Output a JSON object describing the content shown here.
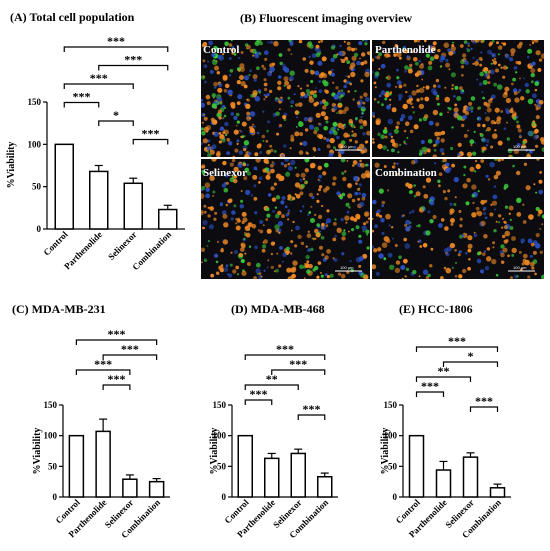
{
  "fluorescent": {
    "title": "(B)  Fluorescent imaging overview",
    "panels": [
      {
        "label": "Control",
        "scale": "100 µm"
      },
      {
        "label": "Parthenolide",
        "scale": "100 µm"
      },
      {
        "label": "Selinexor",
        "scale": "100 µm"
      },
      {
        "label": "Combination",
        "scale": "100 µm"
      }
    ],
    "colors": {
      "orange": "#f08a24",
      "blue": "#2a4fc0",
      "green": "#3ac83a",
      "background": "#0b0b10"
    }
  },
  "chart_data": [
    {
      "id": "A",
      "type": "bar",
      "title": "(A)  Total cell population",
      "ylabel": "%Viability",
      "xlabel": "",
      "ylim": [
        0,
        150
      ],
      "yticks": [
        0,
        50,
        100,
        150
      ],
      "categories": [
        "Control",
        "Parthenolide",
        "Selinexor",
        "Combination"
      ],
      "values": [
        100,
        68,
        54,
        23
      ],
      "errors": [
        0,
        7,
        6,
        5
      ],
      "significance": [
        {
          "from": 0,
          "to": 3,
          "label": "***"
        },
        {
          "from": 1,
          "to": 3,
          "label": "***"
        },
        {
          "from": 0,
          "to": 2,
          "label": "***"
        },
        {
          "from": 0,
          "to": 1,
          "label": "***"
        },
        {
          "from": 1,
          "to": 2,
          "label": "*"
        },
        {
          "from": 2,
          "to": 3,
          "label": "***"
        }
      ]
    },
    {
      "id": "C",
      "type": "bar",
      "title": "(C)  MDA-MB-231",
      "ylabel": "%Viability",
      "xlabel": "",
      "ylim": [
        0,
        150
      ],
      "yticks": [
        0,
        50,
        100,
        150
      ],
      "categories": [
        "Control",
        "Parthenolide",
        "Selinexor",
        "Combination"
      ],
      "values": [
        100,
        107,
        29,
        25
      ],
      "errors": [
        0,
        20,
        7,
        5
      ],
      "significance": [
        {
          "from": 0,
          "to": 3,
          "label": "***"
        },
        {
          "from": 1,
          "to": 3,
          "label": "***"
        },
        {
          "from": 0,
          "to": 2,
          "label": "***"
        },
        {
          "from": 1,
          "to": 2,
          "label": "***"
        }
      ]
    },
    {
      "id": "D",
      "type": "bar",
      "title": "(D)  MDA-MB-468",
      "ylabel": "%Viability",
      "xlabel": "",
      "ylim": [
        0,
        150
      ],
      "yticks": [
        0,
        50,
        100,
        150
      ],
      "categories": [
        "Control",
        "Parthenolide",
        "Selinexor",
        "Combination"
      ],
      "values": [
        100,
        63,
        71,
        33
      ],
      "errors": [
        0,
        8,
        7,
        6
      ],
      "significance": [
        {
          "from": 0,
          "to": 3,
          "label": "***"
        },
        {
          "from": 1,
          "to": 3,
          "label": "***"
        },
        {
          "from": 0,
          "to": 2,
          "label": "**"
        },
        {
          "from": 0,
          "to": 1,
          "label": "***"
        },
        {
          "from": 2,
          "to": 3,
          "label": "***"
        }
      ]
    },
    {
      "id": "E",
      "type": "bar",
      "title": "(E)  HCC-1806",
      "ylabel": "%Viability",
      "xlabel": "",
      "ylim": [
        0,
        150
      ],
      "yticks": [
        0,
        50,
        100,
        150
      ],
      "categories": [
        "Control",
        "Parthenolide",
        "Selinexor",
        "Combination"
      ],
      "values": [
        100,
        44,
        65,
        15
      ],
      "errors": [
        0,
        14,
        7,
        6
      ],
      "significance": [
        {
          "from": 0,
          "to": 3,
          "label": "***"
        },
        {
          "from": 1,
          "to": 3,
          "label": "*"
        },
        {
          "from": 0,
          "to": 2,
          "label": "**"
        },
        {
          "from": 0,
          "to": 1,
          "label": "***"
        },
        {
          "from": 2,
          "to": 3,
          "label": "***"
        }
      ]
    }
  ]
}
